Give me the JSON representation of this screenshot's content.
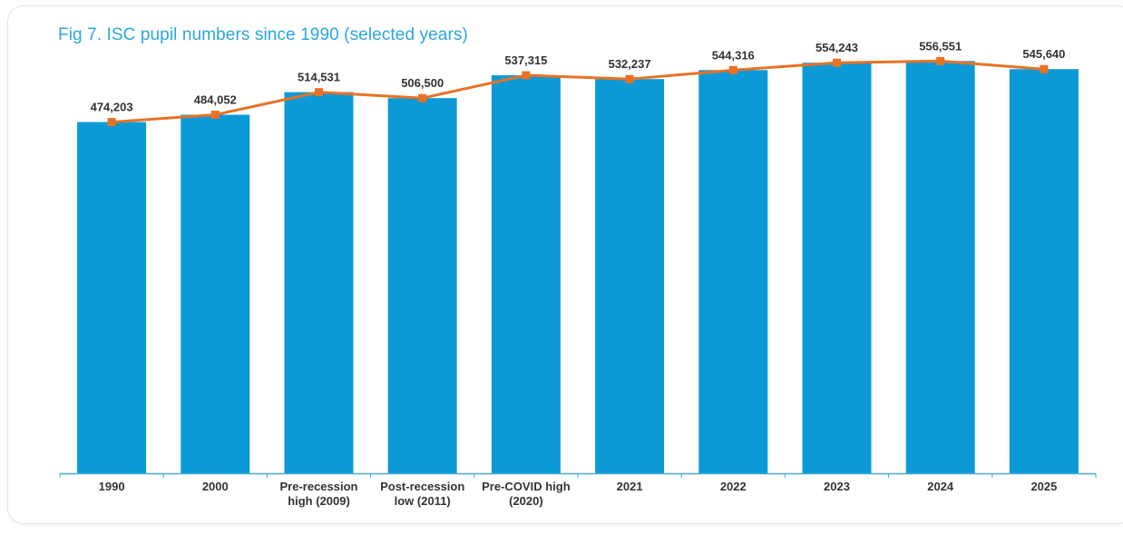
{
  "chart_data": {
    "type": "bar",
    "title": "Fig 7. ISC pupil numbers since 1990 (selected years)",
    "categories": [
      [
        "1990"
      ],
      [
        "2000"
      ],
      [
        "Pre-recession",
        "high (2009)"
      ],
      [
        "Post-recession",
        "low (2011)"
      ],
      [
        "Pre-COVID high",
        "(2020)"
      ],
      [
        "2021"
      ],
      [
        "2022"
      ],
      [
        "2023"
      ],
      [
        "2024"
      ],
      [
        "2025"
      ]
    ],
    "values": [
      474203,
      484052,
      514531,
      506500,
      537315,
      532237,
      544316,
      554243,
      556551,
      545640
    ],
    "value_labels": [
      "474,203",
      "484,052",
      "514,531",
      "506,500",
      "537,315",
      "532,237",
      "544,316",
      "554,243",
      "556,551",
      "545,640"
    ],
    "overlay": "line",
    "bar_color": "#0c9ad7",
    "line_color": "#e87224",
    "axis_color": "#4aa9d8",
    "ylim": [
      0,
      590000
    ],
    "grid": false,
    "legend": "none"
  }
}
